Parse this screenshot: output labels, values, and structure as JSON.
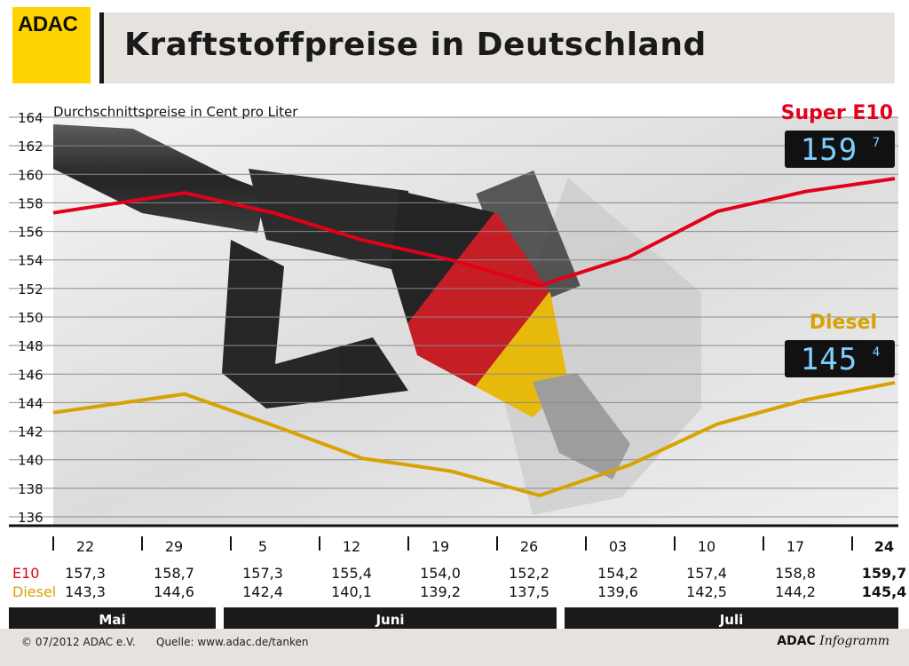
{
  "logo": "ADAC",
  "title": "Kraftstoffpreise in Deutschland",
  "footer": {
    "copyright": "© 07/2012 ADAC e.V.",
    "source": "Quelle: www.adac.de/tanken",
    "brand_bold": "ADAC",
    "brand_italic": "Infogramm"
  },
  "colors": {
    "e10": "#e2001a",
    "diesel": "#d8a200",
    "logo": "#ffd400"
  },
  "chart_data": {
    "type": "line",
    "subtitle": "Durchschnittspreise in Cent pro Liter",
    "ylim": [
      136,
      164
    ],
    "yticks": [
      136,
      138,
      140,
      142,
      144,
      146,
      148,
      150,
      152,
      154,
      156,
      158,
      160,
      162,
      164
    ],
    "categories": [
      "22",
      "29",
      "5",
      "12",
      "19",
      "26",
      "03",
      "10",
      "17",
      "24"
    ],
    "months": [
      "Mai",
      "Juni",
      "Juli"
    ],
    "series": [
      {
        "name": "Super E10",
        "row_label": "E10",
        "display": "159,7",
        "display_digits": "159",
        "display_decimal": "7",
        "values": [
          157.3,
          158.7,
          157.3,
          155.4,
          154.0,
          152.2,
          154.2,
          157.4,
          158.8,
          159.7
        ],
        "labels": [
          "157,3",
          "158,7",
          "157,3",
          "155,4",
          "154,0",
          "152,2",
          "154,2",
          "157,4",
          "158,8",
          "159,7"
        ]
      },
      {
        "name": "Diesel",
        "row_label": "Diesel",
        "display": "145,4",
        "display_digits": "145",
        "display_decimal": "4",
        "values": [
          143.3,
          144.6,
          142.4,
          140.1,
          139.2,
          137.5,
          139.6,
          142.5,
          144.2,
          145.4
        ],
        "labels": [
          "143,3",
          "144,6",
          "142,4",
          "140,1",
          "139,2",
          "137,5",
          "139,6",
          "142,5",
          "144,2",
          "145,4"
        ]
      }
    ],
    "grid": true
  }
}
